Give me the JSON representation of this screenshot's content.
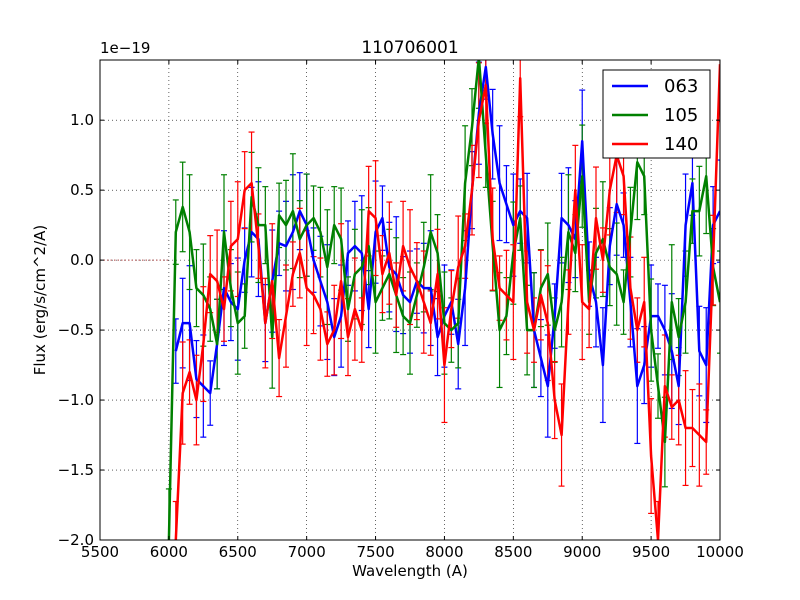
{
  "chart_data": {
    "type": "line",
    "title": "110706001",
    "xlabel": "Wavelength (A)",
    "ylabel": "Flux (erg/s/cm^2/A)",
    "offset_label": "1e−19",
    "xlim": [
      5500,
      10000
    ],
    "ylim": [
      -2.0,
      1.43
    ],
    "x_ticks": [
      5500,
      6000,
      6500,
      7000,
      7500,
      8000,
      8500,
      9000,
      9500,
      10000
    ],
    "y_ticks": [
      -2.0,
      -1.5,
      -1.0,
      -0.5,
      0.0,
      0.5,
      1.0
    ],
    "y_tick_labels": [
      "−2.0",
      "−1.5",
      "−1.0",
      "−0.5",
      "0.0",
      "0.5",
      "1.0"
    ],
    "grid": true,
    "zero_line": true,
    "legend_position": "top-right",
    "series": [
      {
        "name": "063",
        "color": "#0000ff",
        "x": [
          6050,
          6100,
          6150,
          6200,
          6250,
          6300,
          6350,
          6400,
          6450,
          6500,
          6550,
          6600,
          6650,
          6700,
          6750,
          6800,
          6850,
          6900,
          6950,
          7000,
          7050,
          7100,
          7150,
          7200,
          7250,
          7300,
          7350,
          7400,
          7450,
          7500,
          7550,
          7600,
          7650,
          7700,
          7750,
          7800,
          7850,
          7900,
          7950,
          8000,
          8050,
          8100,
          8150,
          8200,
          8250,
          8300,
          8350,
          8400,
          8450,
          8500,
          8550,
          8600,
          8650,
          8700,
          8750,
          8800,
          8850,
          8900,
          8950,
          9000,
          9050,
          9100,
          9150,
          9200,
          9250,
          9300,
          9350,
          9400,
          9450,
          9500,
          9550,
          9600,
          9650,
          9700,
          9750,
          9800,
          9850,
          9900,
          9950,
          10000
        ],
        "y": [
          -0.65,
          -0.45,
          -0.45,
          -0.85,
          -0.9,
          -0.95,
          -0.6,
          -0.2,
          -0.3,
          -0.35,
          0.0,
          0.2,
          0.15,
          -0.45,
          -0.15,
          0.12,
          0.1,
          0.2,
          0.35,
          0.25,
          0.0,
          -0.15,
          -0.3,
          -0.55,
          -0.4,
          0.05,
          0.1,
          0.05,
          -0.35,
          0.2,
          0.3,
          -0.05,
          -0.1,
          -0.25,
          -0.3,
          -0.15,
          -0.2,
          -0.2,
          -0.55,
          -0.4,
          -0.3,
          -0.6,
          -0.2,
          0.5,
          1.05,
          1.38,
          0.9,
          0.55,
          0.4,
          0.25,
          0.35,
          0.3,
          -0.5,
          -0.7,
          -0.9,
          -0.4,
          0.3,
          0.25,
          0.15,
          0.85,
          -0.1,
          -0.3,
          -0.75,
          0.1,
          0.4,
          0.25,
          -0.3,
          -0.9,
          -0.75,
          -0.4,
          -0.4,
          -0.5,
          -0.65,
          -0.9,
          0.25,
          0.55,
          -0.65,
          -0.75,
          0.25,
          0.35
        ]
      },
      {
        "name": "105",
        "color": "#008000",
        "x": [
          6000,
          6050,
          6100,
          6150,
          6200,
          6250,
          6300,
          6350,
          6400,
          6450,
          6500,
          6550,
          6600,
          6650,
          6700,
          6750,
          6800,
          6850,
          6900,
          6950,
          7000,
          7050,
          7100,
          7150,
          7200,
          7250,
          7300,
          7350,
          7400,
          7450,
          7500,
          7550,
          7600,
          7650,
          7700,
          7750,
          7800,
          7850,
          7900,
          7950,
          8000,
          8050,
          8100,
          8150,
          8200,
          8250,
          8300,
          8350,
          8400,
          8450,
          8500,
          8550,
          8600,
          8650,
          8700,
          8750,
          8800,
          8850,
          8900,
          8950,
          9000,
          9050,
          9100,
          9150,
          9200,
          9250,
          9300,
          9350,
          9400,
          9450,
          9500,
          9550,
          9600,
          9650,
          9700,
          9750,
          9800,
          9850,
          9900,
          9950,
          10000
        ],
        "y": [
          -2.0,
          0.2,
          0.38,
          0.2,
          -0.2,
          -0.25,
          -0.35,
          -0.6,
          0.2,
          -0.2,
          -0.45,
          -0.4,
          0.45,
          0.25,
          0.25,
          -0.55,
          0.32,
          0.25,
          0.35,
          0.15,
          0.25,
          0.3,
          0.2,
          -0.05,
          0.25,
          0.15,
          -0.35,
          -0.1,
          -0.05,
          0.1,
          -0.3,
          -0.2,
          -0.1,
          -0.25,
          -0.4,
          -0.45,
          -0.25,
          -0.05,
          0.2,
          0.05,
          -0.45,
          -0.5,
          -0.45,
          0.55,
          0.95,
          1.45,
          0.75,
          0.1,
          -0.5,
          -0.4,
          0.05,
          0.3,
          -0.5,
          -0.5,
          -0.2,
          -0.1,
          -0.5,
          -0.3,
          0.2,
          0.05,
          0.6,
          -0.3,
          0.05,
          0.15,
          -0.05,
          -0.1,
          -0.3,
          0.2,
          0.7,
          0.6,
          -0.5,
          -0.9,
          -1.3,
          -0.3,
          -0.55,
          -0.3,
          0.35,
          0.35,
          0.6,
          -0.05,
          -0.3
        ]
      },
      {
        "name": "140",
        "color": "#ff0000",
        "x": [
          6050,
          6100,
          6150,
          6200,
          6250,
          6300,
          6350,
          6400,
          6450,
          6500,
          6550,
          6600,
          6650,
          6700,
          6750,
          6800,
          6850,
          6900,
          6950,
          7000,
          7050,
          7100,
          7150,
          7200,
          7250,
          7300,
          7350,
          7400,
          7450,
          7500,
          7550,
          7600,
          7650,
          7700,
          7750,
          7800,
          7850,
          7900,
          7950,
          8000,
          8050,
          8100,
          8150,
          8200,
          8250,
          8300,
          8350,
          8400,
          8450,
          8500,
          8550,
          8600,
          8650,
          8700,
          8750,
          8800,
          8850,
          8900,
          8950,
          9000,
          9050,
          9100,
          9150,
          9200,
          9250,
          9300,
          9350,
          9400,
          9450,
          9500,
          9550,
          9600,
          9650,
          9700,
          9750,
          9800,
          9850,
          9900,
          9950,
          10000
        ],
        "y": [
          -2.0,
          -0.95,
          -0.8,
          -1.0,
          -0.6,
          -0.1,
          -0.15,
          -0.35,
          0.1,
          0.15,
          0.5,
          0.55,
          0.1,
          -0.45,
          -0.15,
          -0.7,
          -0.4,
          -0.1,
          0.05,
          -0.2,
          -0.25,
          -0.35,
          -0.6,
          -0.5,
          -0.15,
          -0.55,
          -0.35,
          -0.5,
          0.35,
          0.3,
          -0.1,
          0.05,
          -0.25,
          0.1,
          -0.05,
          -0.15,
          -0.3,
          -0.45,
          -0.1,
          -0.75,
          -0.35,
          -0.05,
          0.1,
          0.5,
          1.0,
          1.25,
          0.15,
          -0.2,
          -0.25,
          -0.3,
          1.3,
          -0.3,
          -0.5,
          -0.25,
          -0.45,
          -1.0,
          -1.25,
          -0.3,
          0.5,
          -0.3,
          -0.35,
          0.3,
          0.0,
          0.5,
          0.75,
          0.6,
          -0.2,
          -0.5,
          -0.3,
          -1.4,
          -2.0,
          -0.9,
          -1.05,
          -1.0,
          -1.2,
          -1.2,
          -1.25,
          -1.3,
          0.0,
          1.4
        ]
      }
    ]
  }
}
